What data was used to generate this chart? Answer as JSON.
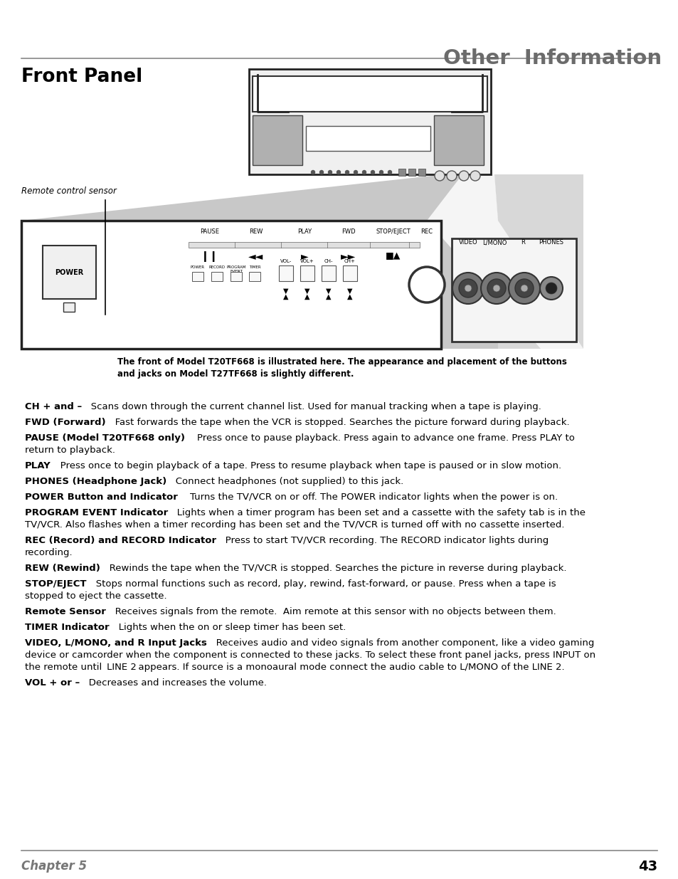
{
  "title": "Other  Information",
  "section_title": "Front Panel",
  "page_number": "43",
  "chapter": "Chapter 5",
  "background_color": "#ffffff",
  "title_color": "#6b6b6b",
  "text_color": "#000000",
  "header_line_color": "#888888",
  "footer_line_color": "#888888",
  "caption_text": "The front of Model T20TF668 is illustrated here. The appearance and placement of the buttons\nand jacks on Model T27TF668 is slightly different.",
  "remote_sensor_label": "Remote control sensor",
  "body_items": [
    {
      "bold": "CH + and –",
      "text": "   Scans down through the current channel list. Used for manual tracking when a tape is playing."
    },
    {
      "bold": "FWD (Forward)",
      "text": "   Fast forwards the tape when the VCR is stopped. Searches the picture forward during playback."
    },
    {
      "bold": "PAUSE (Model T20TF668 only)",
      "text": "    Press once to pause playback. Press again to advance one frame. Press PLAY to\nreturn to playback."
    },
    {
      "bold": "PLAY",
      "text": "   Press once to begin playback of a tape. Press to resume playback when tape is paused or in slow motion."
    },
    {
      "bold": "PHONES (Headphone Jack)",
      "text": "   Connect headphones (not supplied) to this jack."
    },
    {
      "bold": "POWER Button and Indicator",
      "text": "    Turns the TV/VCR on or off. The POWER indicator lights when the power is on."
    },
    {
      "bold": "PROGRAM EVENT Indicator",
      "text": "   Lights when a timer program has been set and a cassette with the safety tab is in the\nTV/VCR. Also flashes when a timer recording has been set and the TV/VCR is turned off with no cassette inserted."
    },
    {
      "bold": "REC (Record) and RECORD Indicator",
      "text": "   Press to start TV/VCR recording. The RECORD indicator lights during\nrecording."
    },
    {
      "bold": "REW (Rewind)",
      "text": "   Rewinds the tape when the TV/VCR is stopped. Searches the picture in reverse during playback."
    },
    {
      "bold": "STOP/EJECT",
      "text": "   Stops normal functions such as record, play, rewind, fast-forward, or pause. Press when a tape is\nstopped to eject the cassette."
    },
    {
      "bold": "Remote Sensor",
      "text": "   Receives signals from the remote.  Aim remote at this sensor with no objects between them."
    },
    {
      "bold": "TIMER Indicator",
      "text": "   Lights when the on or sleep timer has been set."
    },
    {
      "bold": "VIDEO, L/MONO, and R Input Jacks",
      "text": "   Receives audio and video signals from another component, like a video gaming\ndevice or camcorder when the component is connected to these jacks. To select these front panel jacks, press INPUT on\nthe remote until  LINE 2 appears. If source is a monoaural mode connect the audio cable to L/MONO of the LINE 2."
    },
    {
      "bold": "VOL + or –",
      "text": "   Decreases and increases the volume."
    }
  ]
}
